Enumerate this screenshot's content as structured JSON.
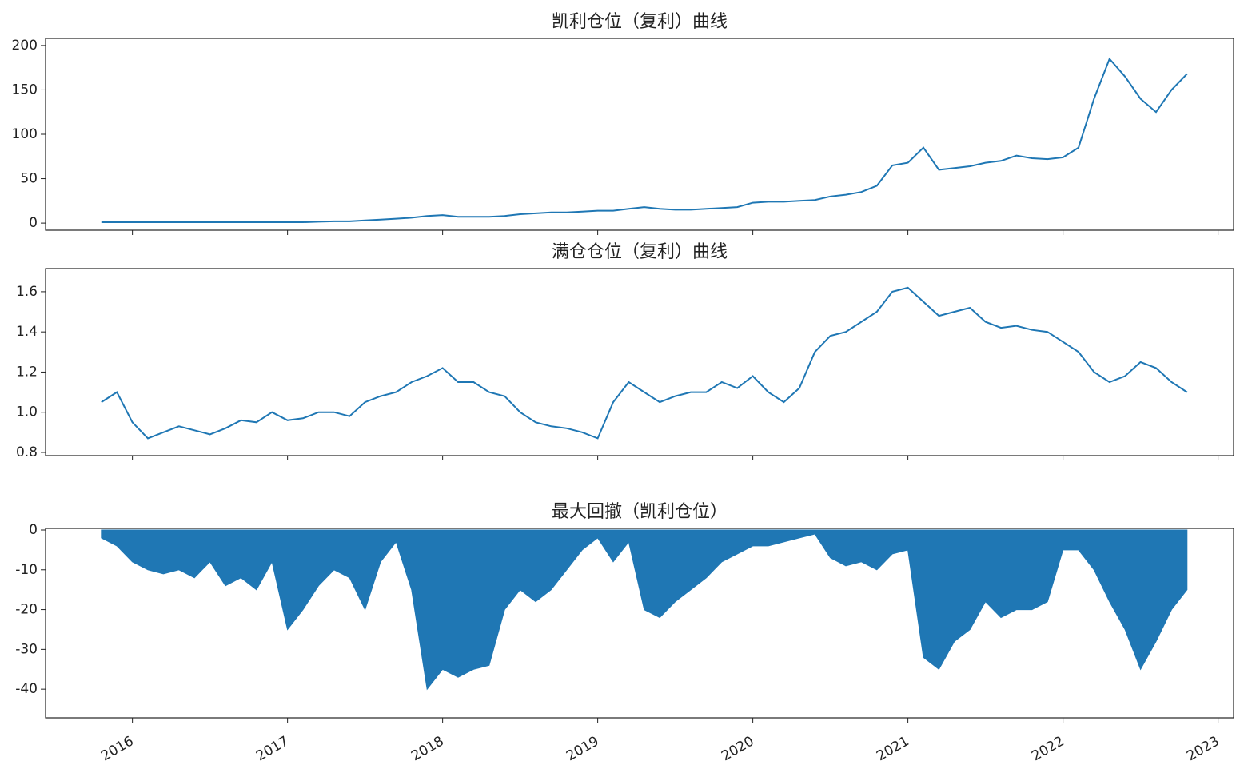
{
  "chart_data": [
    {
      "type": "line",
      "title": "凯利仓位（复利）曲线",
      "color": "#1f77b4",
      "x": [
        2015.8,
        2015.9,
        2016.0,
        2016.1,
        2016.2,
        2016.3,
        2016.4,
        2016.5,
        2016.6,
        2016.7,
        2016.8,
        2016.9,
        2017.0,
        2017.1,
        2017.2,
        2017.3,
        2017.4,
        2017.5,
        2017.6,
        2017.7,
        2017.8,
        2017.9,
        2018.0,
        2018.1,
        2018.2,
        2018.3,
        2018.4,
        2018.5,
        2018.6,
        2018.7,
        2018.8,
        2018.9,
        2019.0,
        2019.1,
        2019.2,
        2019.3,
        2019.4,
        2019.5,
        2019.6,
        2019.7,
        2019.8,
        2019.9,
        2020.0,
        2020.1,
        2020.2,
        2020.3,
        2020.4,
        2020.5,
        2020.6,
        2020.7,
        2020.8,
        2020.9,
        2021.0,
        2021.1,
        2021.2,
        2021.3,
        2021.4,
        2021.5,
        2021.6,
        2021.7,
        2021.8,
        2021.9,
        2022.0,
        2022.1,
        2022.2,
        2022.3,
        2022.4,
        2022.5,
        2022.6,
        2022.7,
        2022.8
      ],
      "values": [
        1,
        1,
        1,
        1,
        1,
        1,
        1,
        1,
        1,
        1,
        1,
        1,
        1,
        1,
        1.5,
        2,
        2,
        3,
        4,
        5,
        6,
        8,
        9,
        7,
        7,
        7,
        8,
        10,
        11,
        12,
        12,
        13,
        14,
        14,
        16,
        18,
        16,
        15,
        15,
        16,
        17,
        18,
        23,
        24,
        24,
        25,
        26,
        30,
        32,
        35,
        42,
        65,
        68,
        85,
        60,
        62,
        64,
        68,
        70,
        76,
        73,
        72,
        74,
        85,
        140,
        185,
        165,
        140,
        125,
        150,
        168
      ],
      "xlim": [
        2015.44,
        2023.1
      ],
      "ylim": [
        -8,
        208
      ],
      "yticks": [
        0,
        50,
        100,
        150,
        200
      ]
    },
    {
      "type": "line",
      "title": "满仓仓位（复利）曲线",
      "color": "#1f77b4",
      "x": [
        2015.8,
        2015.9,
        2016.0,
        2016.1,
        2016.2,
        2016.3,
        2016.4,
        2016.5,
        2016.6,
        2016.7,
        2016.8,
        2016.9,
        2017.0,
        2017.1,
        2017.2,
        2017.3,
        2017.4,
        2017.5,
        2017.6,
        2017.7,
        2017.8,
        2017.9,
        2018.0,
        2018.1,
        2018.2,
        2018.3,
        2018.4,
        2018.5,
        2018.6,
        2018.7,
        2018.8,
        2018.9,
        2019.0,
        2019.1,
        2019.2,
        2019.3,
        2019.4,
        2019.5,
        2019.6,
        2019.7,
        2019.8,
        2019.9,
        2020.0,
        2020.1,
        2020.2,
        2020.3,
        2020.4,
        2020.5,
        2020.6,
        2020.7,
        2020.8,
        2020.9,
        2021.0,
        2021.1,
        2021.2,
        2021.3,
        2021.4,
        2021.5,
        2021.6,
        2021.7,
        2021.8,
        2021.9,
        2022.0,
        2022.1,
        2022.2,
        2022.3,
        2022.4,
        2022.5,
        2022.6,
        2022.7,
        2022.8
      ],
      "values": [
        1.05,
        1.1,
        0.95,
        0.87,
        0.9,
        0.93,
        0.91,
        0.89,
        0.92,
        0.96,
        0.95,
        1.0,
        0.96,
        0.97,
        1.0,
        1.0,
        0.98,
        1.05,
        1.08,
        1.1,
        1.15,
        1.18,
        1.22,
        1.15,
        1.15,
        1.1,
        1.08,
        1.0,
        0.95,
        0.93,
        0.92,
        0.9,
        0.87,
        1.05,
        1.15,
        1.1,
        1.05,
        1.08,
        1.1,
        1.1,
        1.15,
        1.12,
        1.18,
        1.1,
        1.05,
        1.12,
        1.3,
        1.38,
        1.4,
        1.45,
        1.5,
        1.6,
        1.62,
        1.55,
        1.48,
        1.5,
        1.52,
        1.45,
        1.42,
        1.43,
        1.41,
        1.4,
        1.35,
        1.3,
        1.2,
        1.15,
        1.18,
        1.25,
        1.22,
        1.15,
        1.1
      ],
      "xlim": [
        2015.44,
        2023.1
      ],
      "ylim": [
        0.784,
        1.715
      ],
      "yticks": [
        0.8,
        {
          "value": 1,
          "label": "1.0"
        },
        1.2,
        1.4,
        1.6
      ]
    },
    {
      "type": "area",
      "title": "最大回撤（凯利仓位）",
      "color": "#1f77b4",
      "x": [
        2015.8,
        2015.9,
        2016.0,
        2016.1,
        2016.2,
        2016.3,
        2016.4,
        2016.5,
        2016.6,
        2016.7,
        2016.8,
        2016.9,
        2017.0,
        2017.1,
        2017.2,
        2017.3,
        2017.4,
        2017.5,
        2017.6,
        2017.7,
        2017.8,
        2017.9,
        2018.0,
        2018.1,
        2018.2,
        2018.3,
        2018.4,
        2018.5,
        2018.6,
        2018.7,
        2018.8,
        2018.9,
        2019.0,
        2019.1,
        2019.2,
        2019.3,
        2019.4,
        2019.5,
        2019.6,
        2019.7,
        2019.8,
        2019.9,
        2020.0,
        2020.1,
        2020.2,
        2020.3,
        2020.4,
        2020.5,
        2020.6,
        2020.7,
        2020.8,
        2020.9,
        2021.0,
        2021.1,
        2021.2,
        2021.3,
        2021.4,
        2021.5,
        2021.6,
        2021.7,
        2021.8,
        2021.9,
        2022.0,
        2022.1,
        2022.2,
        2022.3,
        2022.4,
        2022.5,
        2022.6,
        2022.7,
        2022.8
      ],
      "values": [
        -2,
        -4,
        -8,
        -10,
        -11,
        -10,
        -12,
        -8,
        -14,
        -12,
        -15,
        -8,
        -25,
        -20,
        -14,
        -10,
        -12,
        -20,
        -8,
        -3,
        -15,
        -40,
        -35,
        -37,
        -35,
        -34,
        -20,
        -15,
        -18,
        -15,
        -10,
        -5,
        -2,
        -8,
        -3,
        -20,
        -22,
        -18,
        -15,
        -12,
        -8,
        -6,
        -4,
        -4,
        -3,
        -2,
        -1,
        -7,
        -9,
        -8,
        -10,
        -6,
        -5,
        -32,
        -35,
        -28,
        -25,
        -18,
        -22,
        -20,
        -20,
        -18,
        -5,
        -5,
        -10,
        -18,
        -25,
        -35,
        -28,
        -20,
        -15
      ],
      "xlim": [
        2015.44,
        2023.1
      ],
      "ylim": [
        -47.2,
        0.4
      ],
      "yticks": [
        -40,
        -30,
        -20,
        -10,
        0
      ],
      "xticks": [
        2016,
        2017,
        2018,
        2019,
        2020,
        2021,
        2022,
        2023
      ]
    }
  ]
}
